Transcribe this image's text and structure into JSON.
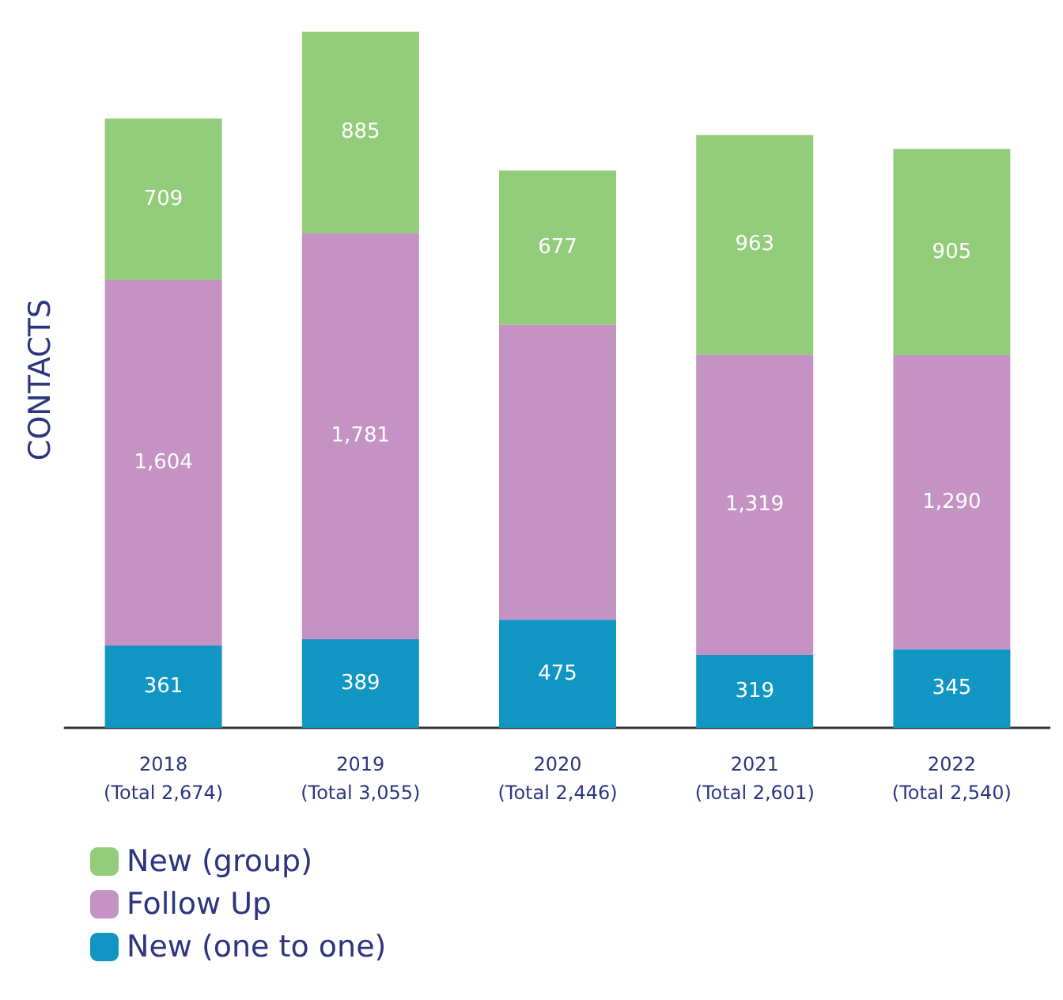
{
  "chart_data": {
    "type": "bar",
    "stacked": true,
    "ylabel": "CONTACTS",
    "categories": [
      "2018\n(Total 2,674)",
      "2019\n(Total 3,055)",
      "2020\n(Total 2,446)",
      "2021\n(Total 2,601)",
      "2022\n(Total 2,540)"
    ],
    "series": [
      {
        "name": "New (one to one)",
        "color": "#1196c3",
        "values": [
          361,
          389,
          475,
          319,
          345
        ],
        "value_labels": [
          "361",
          "389",
          "475",
          "319",
          "345"
        ]
      },
      {
        "name": "Follow Up",
        "color": "#c592c4",
        "values": [
          1604,
          1781,
          1294,
          1319,
          1290
        ],
        "value_labels": [
          "1,604",
          "1,781",
          null,
          "1,319",
          "1,290"
        ]
      },
      {
        "name": "New (group)",
        "color": "#93cc7a",
        "values": [
          709,
          885,
          677,
          963,
          905
        ],
        "value_labels": [
          "709",
          "885",
          "677",
          "963",
          "905"
        ]
      }
    ],
    "legend": "bottom left",
    "grid": false
  }
}
